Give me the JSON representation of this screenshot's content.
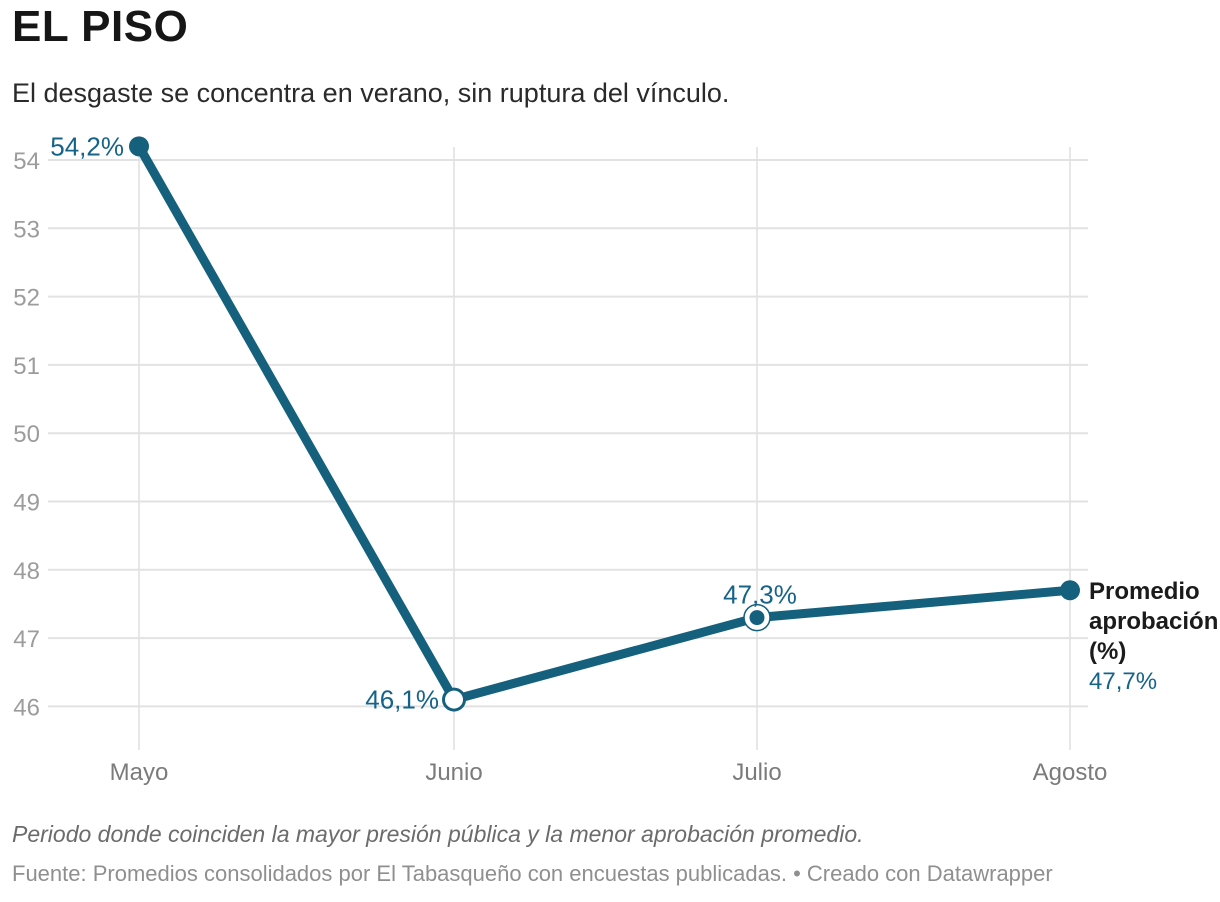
{
  "header": {
    "title": "EL PISO",
    "subtitle": "El desgaste se concentra en verano, sin ruptura del vínculo."
  },
  "chart_data": {
    "type": "line",
    "title": "EL PISO",
    "subtitle": "El desgaste se concentra en verano, sin ruptura del vínculo.",
    "categories": [
      "Mayo",
      "Junio",
      "Julio",
      "Agosto"
    ],
    "series": [
      {
        "name": "Promedio aprobación (%)",
        "values": [
          54.2,
          46.1,
          47.3,
          47.7
        ]
      }
    ],
    "value_labels": [
      "54,2%",
      "46,1%",
      "47,3%",
      "47,7%"
    ],
    "value_label_placements": [
      "left",
      "left",
      "above",
      "legend"
    ],
    "point_styles": [
      "filled",
      "open",
      "filled-halo",
      "filled"
    ],
    "xlabel": "",
    "ylabel": "",
    "yticks": [
      46,
      47,
      48,
      49,
      50,
      51,
      52,
      53,
      54
    ],
    "ylim": [
      46,
      54.2
    ],
    "grid": true,
    "legend_position": "right-of-last-point",
    "colors": {
      "line": "#15607d",
      "value_label": "#16638a",
      "h_gridline": "#e2e2e2",
      "v_gridline": "#e7e7e7",
      "y_tick_label": "#9c9c9c",
      "x_axis_label": "#7b7b7b"
    }
  },
  "footer": {
    "footnote": "Periodo donde coinciden la mayor presión pública y la menor aprobación promedio.",
    "source": "Fuente: Promedios consolidados por El Tabasqueño con encuestas publicadas. • Creado con Datawrapper"
  }
}
